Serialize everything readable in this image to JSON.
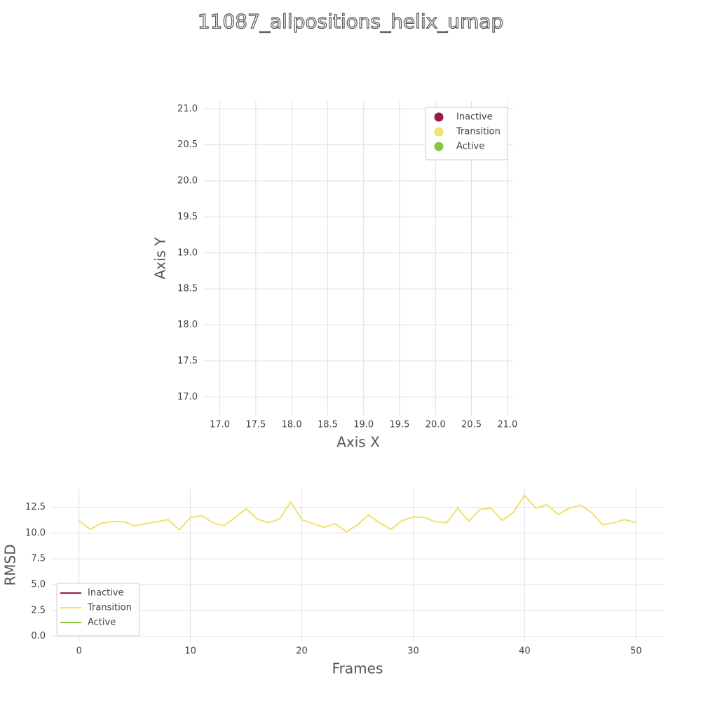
{
  "title": "11087_allpositions_helix_umap",
  "chart_data": [
    {
      "type": "scatter",
      "xlabel": "Axis X",
      "ylabel": "Axis Y",
      "series": [
        {
          "name": "Inactive",
          "color": "#a0174a",
          "x": [],
          "y": []
        },
        {
          "name": "Transition",
          "color": "#f0e26a",
          "x": [],
          "y": []
        },
        {
          "name": "Active",
          "color": "#8cc43f",
          "x": [],
          "y": []
        }
      ],
      "xlim": [
        16.77,
        21.08
      ],
      "xticks": [
        {
          "value": 17,
          "label": "17.0"
        },
        17.5,
        {
          "value": 18,
          "label": "18.0"
        },
        18.5,
        {
          "value": 19,
          "label": "19.0"
        },
        19.5,
        {
          "value": 20,
          "label": "20.0"
        },
        20.5,
        {
          "value": 21,
          "label": "21.0"
        }
      ],
      "ylim": [
        16.75,
        21.1
      ],
      "yticks": [
        {
          "value": 17,
          "label": "17.0"
        },
        17.5,
        {
          "value": 18,
          "label": "18.0"
        },
        18.5,
        {
          "value": 19,
          "label": "19.0"
        },
        19.5,
        {
          "value": 20,
          "label": "20.0"
        },
        20.5,
        {
          "value": 21,
          "label": "21.0"
        }
      ],
      "grid": true,
      "legend": "upper right"
    },
    {
      "type": "line",
      "xlabel": "Frames",
      "ylabel": "RMSD",
      "x": [
        0,
        1,
        2,
        3,
        4,
        5,
        6,
        7,
        8,
        9,
        10,
        11,
        12,
        13,
        14,
        15,
        16,
        17,
        18,
        19,
        20,
        21,
        22,
        23,
        24,
        25,
        26,
        27,
        28,
        29,
        30,
        31,
        32,
        33,
        34,
        35,
        36,
        37,
        38,
        39,
        40,
        41,
        42,
        43,
        44,
        45,
        46,
        47,
        48,
        49,
        50
      ],
      "series": [
        {
          "name": "Inactive",
          "color": "#a0174a",
          "values": [
            null,
            null,
            null,
            null,
            null,
            null,
            null,
            null,
            null,
            null,
            null,
            null,
            null,
            null,
            null,
            null,
            null,
            null,
            null,
            null,
            null,
            null,
            null,
            null,
            null,
            null,
            null,
            null,
            null,
            null,
            null,
            null,
            null,
            null,
            null,
            null,
            null,
            null,
            null,
            null,
            null,
            null,
            null,
            null,
            null,
            null,
            null,
            null,
            null,
            null,
            null
          ]
        },
        {
          "name": "Transition",
          "color": "#f0e26a",
          "values": [
            11.2,
            10.35,
            10.95,
            11.1,
            11.1,
            10.7,
            10.9,
            11.1,
            11.3,
            10.3,
            11.5,
            11.7,
            11.0,
            10.7,
            11.5,
            12.35,
            11.35,
            11.0,
            11.35,
            13.0,
            11.3,
            10.9,
            10.55,
            10.9,
            10.1,
            10.8,
            11.75,
            10.95,
            10.35,
            11.2,
            11.55,
            11.5,
            11.1,
            11.0,
            12.4,
            11.15,
            12.3,
            12.4,
            11.2,
            12.0,
            13.65,
            12.4,
            12.75,
            11.8,
            12.4,
            12.7,
            12.0,
            10.8,
            11.0,
            11.3,
            11.0
          ]
        },
        {
          "name": "Active",
          "color": "#8cc43f",
          "values": [
            null,
            null,
            null,
            null,
            null,
            null,
            null,
            null,
            null,
            null,
            null,
            null,
            null,
            null,
            null,
            null,
            null,
            null,
            null,
            null,
            null,
            null,
            null,
            null,
            null,
            null,
            null,
            null,
            null,
            null,
            null,
            null,
            null,
            null,
            null,
            null,
            null,
            null,
            null,
            null,
            null,
            null,
            null,
            null,
            null,
            null,
            null,
            null,
            null,
            null,
            null
          ]
        }
      ],
      "xlim": [
        -2.5,
        52.5
      ],
      "xticks": [
        0,
        10,
        20,
        30,
        40,
        50
      ],
      "ylim": [
        -0.5,
        14.3
      ],
      "yticks": [
        {
          "value": 0,
          "label": "0.0"
        },
        2.5,
        {
          "value": 5,
          "label": "5.0"
        },
        7.5,
        {
          "value": 10,
          "label": "10.0"
        },
        12.5
      ],
      "grid": true,
      "legend": "lower left"
    }
  ]
}
